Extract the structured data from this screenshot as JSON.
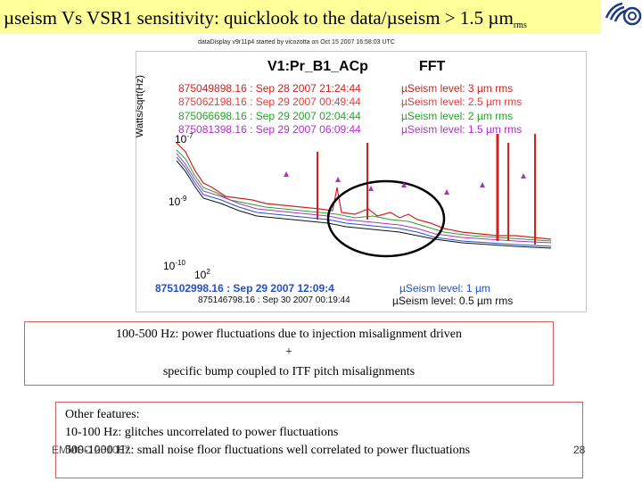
{
  "slide": {
    "title": {
      "mu1": "µ",
      "part1": "seism Vs VSR1 sensitivity: quicklook to the data/",
      "mu2": "µ",
      "part2": "seism > 1.5 ",
      "mu3": "µ",
      "unit": "m",
      "sub": "rms"
    },
    "figure": {
      "header": "dataDisplay v9r11p4 started by vicozotta on Oct 15 2007 16:58:03 UTC",
      "plot_title": "V1:Pr_B1_ACp",
      "plot_fft": "FFT",
      "ylabel": "Watts/sqrt(Hz)",
      "y_ticks": [
        "10",
        "10",
        "10"
      ],
      "y_tick_exps": [
        "-7",
        "-9",
        "-10"
      ],
      "x_tick": "10",
      "x_tick_exp": "2",
      "legend_top": [
        {
          "time": "875049898.16 : Sep 28 2007 21:24:44",
          "level": "µSeism level: 3 µm rms",
          "color": "#d42020"
        },
        {
          "time": "875062198.16 : Sep 29 2007 00:49:44",
          "level": "µSeism level: 2.5 µm rms",
          "color": "#e04040"
        },
        {
          "time": "875066698.16 : Sep 29 2007 02:04:44",
          "level": "µSeism level: 2 µm rms",
          "color": "#2aa02a"
        },
        {
          "time": "875081398.16 : Sep 29 2007 06:09:44",
          "level": "µSeism level: 1.5 µm rms",
          "color": "#b030c8"
        }
      ],
      "legend_bottom": [
        {
          "time": "875102998.16 : Sep 29 2007 12:09:4",
          "level": "µSeism level: 1 µm",
          "color": "#2050d0"
        },
        {
          "time": "875146798.16 : Sep 30 2007 00:19:44",
          "level": "µSeism level: 0.5 µm rms",
          "color": "#111111"
        }
      ]
    },
    "box1": {
      "line1": "100-500 Hz: power fluctuations due to injection misalignment driven",
      "line2": "+",
      "line3": "specific bump coupled to ITF pitch misalignments"
    },
    "box2": {
      "line1": "Other features:",
      "line2": "10-100 Hz: glitches uncorrelated to power fluctuations",
      "line3": "500-1000 Hz: small noise floor fluctuations well correlated to power fluctuations"
    },
    "footer": {
      "left": "EMMSC 251007",
      "page": "28"
    },
    "colors": {
      "title_bg": "#ffff99",
      "box_border": "#d06060"
    }
  }
}
